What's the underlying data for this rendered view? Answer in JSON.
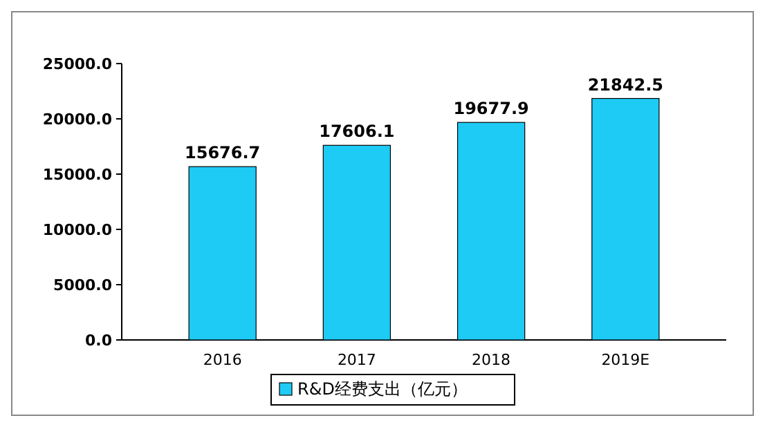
{
  "chart_data": {
    "type": "bar",
    "categories": [
      "2016",
      "2017",
      "2018",
      "2019E"
    ],
    "series": [
      {
        "name": "R&D经费支出（亿元）",
        "color": "#1ecbf5",
        "values": [
          15676.7,
          17606.1,
          19677.9,
          21842.5
        ]
      }
    ],
    "ylim": [
      0,
      25000
    ],
    "yticks": [
      {
        "value": 0,
        "label": "0.0"
      },
      {
        "value": 5000,
        "label": "5000.0"
      },
      {
        "value": 10000,
        "label": "10000.0"
      },
      {
        "value": 15000,
        "label": "15000.0"
      },
      {
        "value": 20000,
        "label": "20000.0"
      },
      {
        "value": 25000,
        "label": "25000.0"
      }
    ],
    "data_labels": true,
    "legend": "bottom",
    "grid": false
  }
}
